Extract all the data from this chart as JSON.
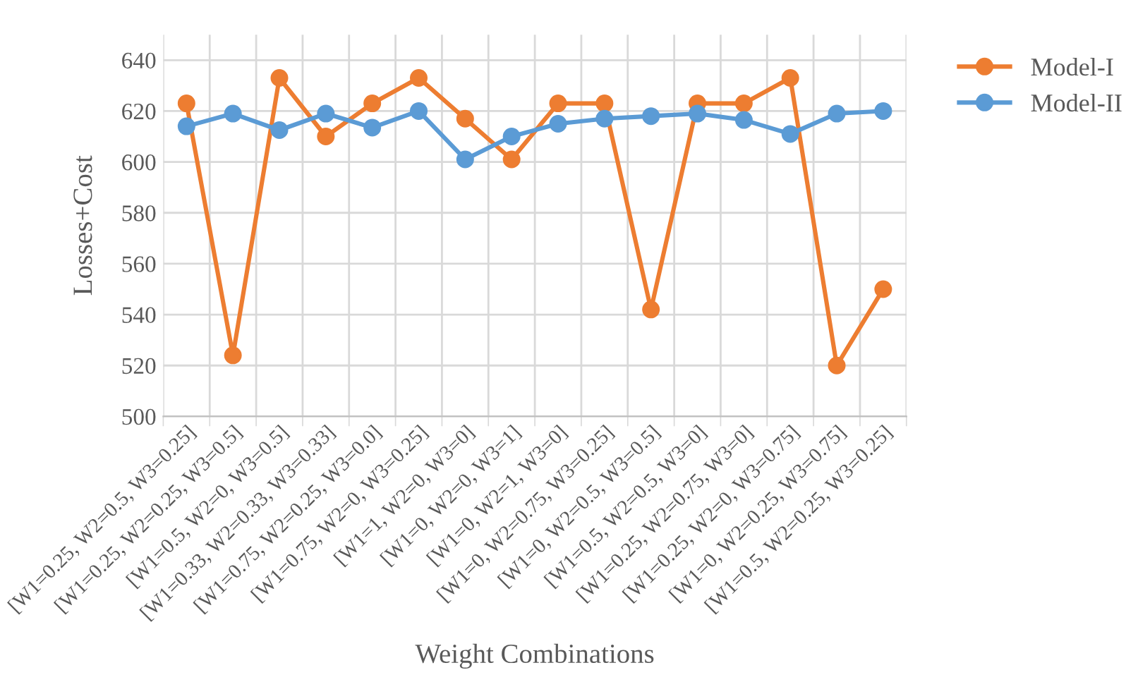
{
  "chart_data": {
    "type": "line",
    "xlabel": "Weight Combinations",
    "ylabel": "Losses+Cost",
    "categories": [
      "[W1=0.25, W2=0.5, W3=0.25]",
      "[W1=0.25, W2=0.25, W3=0.5]",
      "[W1=0.5, W2=0, W3=0.5]",
      "[W1=0.33, W2=0.33, W3=0.33]",
      "[W1=0.75, W2=0.25, W3=0.0]",
      "[W1=0.75, W2=0, W3=0.25]",
      "[W1=1, W2=0, W3=0]",
      "[W1=0, W2=0, W3=1]",
      "[W1=0, W2=1, W3=0]",
      "[W1=0, W2=0.75, W3=0.25]",
      "[W1=0, W2=0.5, W3=0.5]",
      "[W1=0.5, W2=0.5, W3=0]",
      "[W1=0.25, W2=0.75, W3=0]",
      "[W1=0.25, W2=0, W3=0.75]",
      "[W1=0, W2=0.25, W3=0.75]",
      "[W1=0.5, W2=0.25, W3=0.25]"
    ],
    "series": [
      {
        "name": "Model-I",
        "color": "#ed7d31",
        "values": [
          623,
          524,
          633,
          610,
          623,
          633,
          617,
          601,
          623,
          623,
          542,
          623,
          623,
          633,
          520,
          550
        ]
      },
      {
        "name": "Model-II",
        "color": "#5b9bd5",
        "values": [
          614,
          619,
          612.5,
          619,
          613.5,
          620,
          601,
          610,
          615,
          617,
          618,
          619,
          616.5,
          611,
          619,
          620
        ]
      }
    ],
    "ylim": [
      500,
      650
    ],
    "yticks": [
      500,
      520,
      540,
      560,
      580,
      600,
      620,
      640
    ],
    "grid": true,
    "legend": "top right",
    "marker": "circle",
    "line_style": "solid"
  }
}
